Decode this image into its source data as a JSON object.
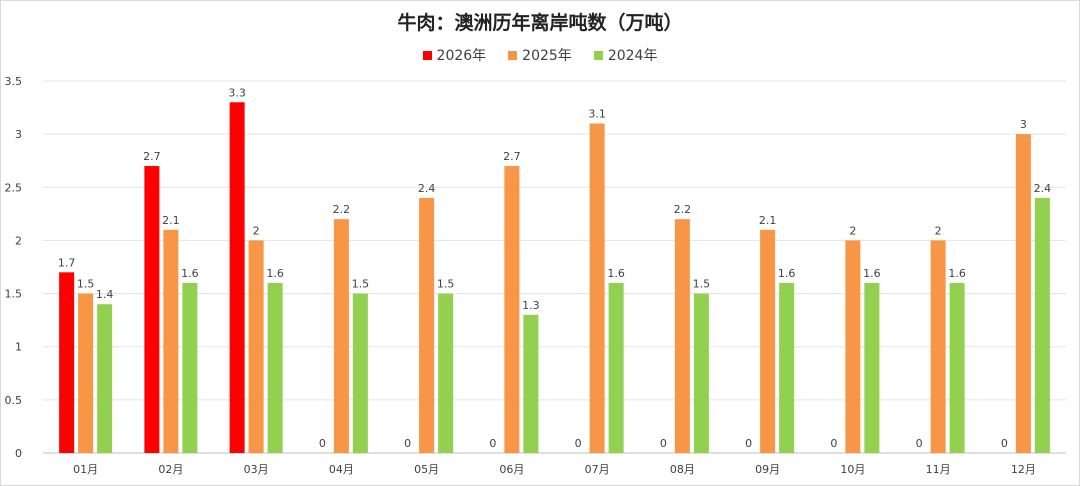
{
  "chart_data": {
    "type": "bar",
    "title": "牛肉：澳洲历年离岸吨数（万吨）",
    "categories": [
      "01月",
      "02月",
      "03月",
      "04月",
      "05月",
      "06月",
      "07月",
      "08月",
      "09月",
      "10月",
      "11月",
      "12月"
    ],
    "series": [
      {
        "name": "2026年",
        "color": "#ff0000",
        "values": [
          1.7,
          2.7,
          3.3,
          0,
          0,
          0,
          0,
          0,
          0,
          0,
          0,
          0
        ]
      },
      {
        "name": "2025年",
        "color": "#f79646",
        "values": [
          1.5,
          2.1,
          2,
          2.2,
          2.4,
          2.7,
          3.1,
          2.2,
          2.1,
          2,
          2,
          3
        ]
      },
      {
        "name": "2024年",
        "color": "#92d050",
        "values": [
          1.4,
          1.6,
          1.6,
          1.5,
          1.5,
          1.3,
          1.6,
          1.5,
          1.6,
          1.6,
          1.6,
          2.4
        ]
      }
    ],
    "yticks": [
      "0",
      "0.5",
      "1",
      "1.5",
      "2",
      "2.5",
      "3",
      "3.5"
    ],
    "ylim": [
      0,
      3.5
    ],
    "grid": true,
    "legend_position": "top"
  }
}
